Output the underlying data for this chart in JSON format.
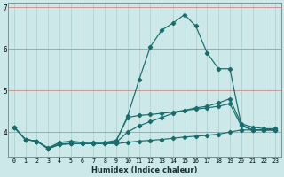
{
  "xlabel": "Humidex (Indice chaleur)",
  "bg_color": "#cce8e8",
  "grid_color": "#aacece",
  "line_color": "#1a6b6b",
  "red_line_color": "#cc8888",
  "xlim": [
    -0.5,
    23.5
  ],
  "ylim": [
    3.4,
    7.1
  ],
  "yticks": [
    4,
    5,
    6,
    7
  ],
  "xticks": [
    0,
    1,
    2,
    3,
    4,
    5,
    6,
    7,
    8,
    9,
    10,
    11,
    12,
    13,
    14,
    15,
    16,
    17,
    18,
    19,
    20,
    21,
    22,
    23
  ],
  "line1_x": [
    0,
    1,
    2,
    3,
    4,
    5,
    6,
    7,
    8,
    9,
    10,
    11,
    12,
    13,
    14,
    15,
    16,
    17,
    18,
    19,
    20,
    21,
    22,
    23
  ],
  "line1_y": [
    4.12,
    3.82,
    3.78,
    3.6,
    3.7,
    3.72,
    3.72,
    3.72,
    3.72,
    3.72,
    3.75,
    3.78,
    3.8,
    3.82,
    3.85,
    3.88,
    3.9,
    3.92,
    3.95,
    4.0,
    4.05,
    4.05,
    4.05,
    4.05
  ],
  "line2_x": [
    0,
    1,
    2,
    3,
    4,
    5,
    6,
    7,
    8,
    9,
    10,
    11,
    12,
    13,
    14,
    15,
    16,
    17,
    18,
    19,
    20,
    21,
    22,
    23
  ],
  "line2_y": [
    4.12,
    3.82,
    3.78,
    3.6,
    3.7,
    3.72,
    3.72,
    3.72,
    3.72,
    3.75,
    4.0,
    4.15,
    4.25,
    4.35,
    4.45,
    4.52,
    4.58,
    4.62,
    4.7,
    4.8,
    4.2,
    4.12,
    4.08,
    4.08
  ],
  "line3_x": [
    0,
    1,
    2,
    3,
    4,
    5,
    6,
    7,
    8,
    9,
    10,
    11,
    12,
    13,
    14,
    15,
    16,
    17,
    18,
    19,
    20,
    21,
    22,
    23
  ],
  "line3_y": [
    4.12,
    3.82,
    3.78,
    3.62,
    3.75,
    3.78,
    3.75,
    3.75,
    3.75,
    3.8,
    4.35,
    4.4,
    4.42,
    4.45,
    4.48,
    4.52,
    4.55,
    4.58,
    4.62,
    4.68,
    4.15,
    4.05,
    4.05,
    4.05
  ],
  "line4_x": [
    0,
    1,
    2,
    3,
    4,
    5,
    6,
    7,
    8,
    9,
    10,
    11,
    12,
    13,
    14,
    15,
    16,
    17,
    18,
    19,
    20,
    21,
    22,
    23
  ],
  "line4_y": [
    4.12,
    3.82,
    3.78,
    3.6,
    3.72,
    3.72,
    3.72,
    3.72,
    3.72,
    3.78,
    4.38,
    5.25,
    6.05,
    6.45,
    6.62,
    6.82,
    6.55,
    5.9,
    5.52,
    5.52,
    4.18,
    4.05,
    4.05,
    4.05
  ]
}
